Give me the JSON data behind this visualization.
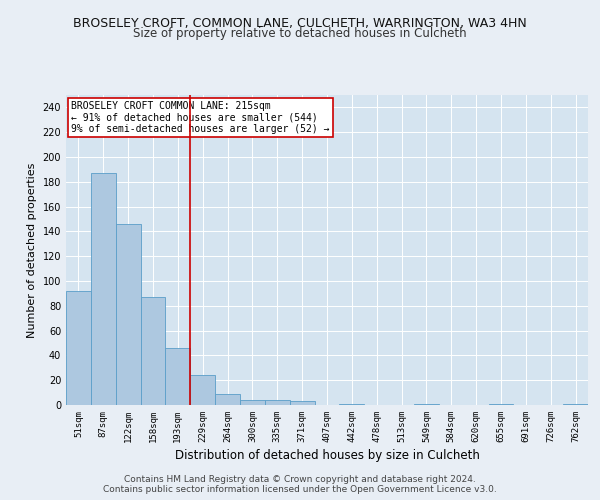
{
  "title1": "BROSELEY CROFT, COMMON LANE, CULCHETH, WARRINGTON, WA3 4HN",
  "title2": "Size of property relative to detached houses in Culcheth",
  "xlabel": "Distribution of detached houses by size in Culcheth",
  "ylabel": "Number of detached properties",
  "footer1": "Contains HM Land Registry data © Crown copyright and database right 2024.",
  "footer2": "Contains public sector information licensed under the Open Government Licence v3.0.",
  "bar_labels": [
    "51sqm",
    "87sqm",
    "122sqm",
    "158sqm",
    "193sqm",
    "229sqm",
    "264sqm",
    "300sqm",
    "335sqm",
    "371sqm",
    "407sqm",
    "442sqm",
    "478sqm",
    "513sqm",
    "549sqm",
    "584sqm",
    "620sqm",
    "655sqm",
    "691sqm",
    "726sqm",
    "762sqm"
  ],
  "bar_values": [
    92,
    187,
    146,
    87,
    46,
    24,
    9,
    4,
    4,
    3,
    0,
    1,
    0,
    0,
    1,
    0,
    0,
    1,
    0,
    0,
    1
  ],
  "bar_color": "#adc8e0",
  "bar_edge_color": "#5a9ec9",
  "vline_x": 4.5,
  "vline_color": "#cc0000",
  "annotation_text": "BROSELEY CROFT COMMON LANE: 215sqm\n← 91% of detached houses are smaller (544)\n9% of semi-detached houses are larger (52) →",
  "annotation_box_color": "#cc0000",
  "ylim": [
    0,
    250
  ],
  "yticks": [
    0,
    20,
    40,
    60,
    80,
    100,
    120,
    140,
    160,
    180,
    200,
    220,
    240
  ],
  "bg_color": "#e8eef5",
  "plot_bg_color": "#d5e4f0",
  "grid_color": "#ffffff",
  "title1_fontsize": 9,
  "title2_fontsize": 8.5,
  "xlabel_fontsize": 8.5,
  "ylabel_fontsize": 8,
  "footer_fontsize": 6.5,
  "annotation_fontsize": 7,
  "tick_fontsize": 6.5
}
